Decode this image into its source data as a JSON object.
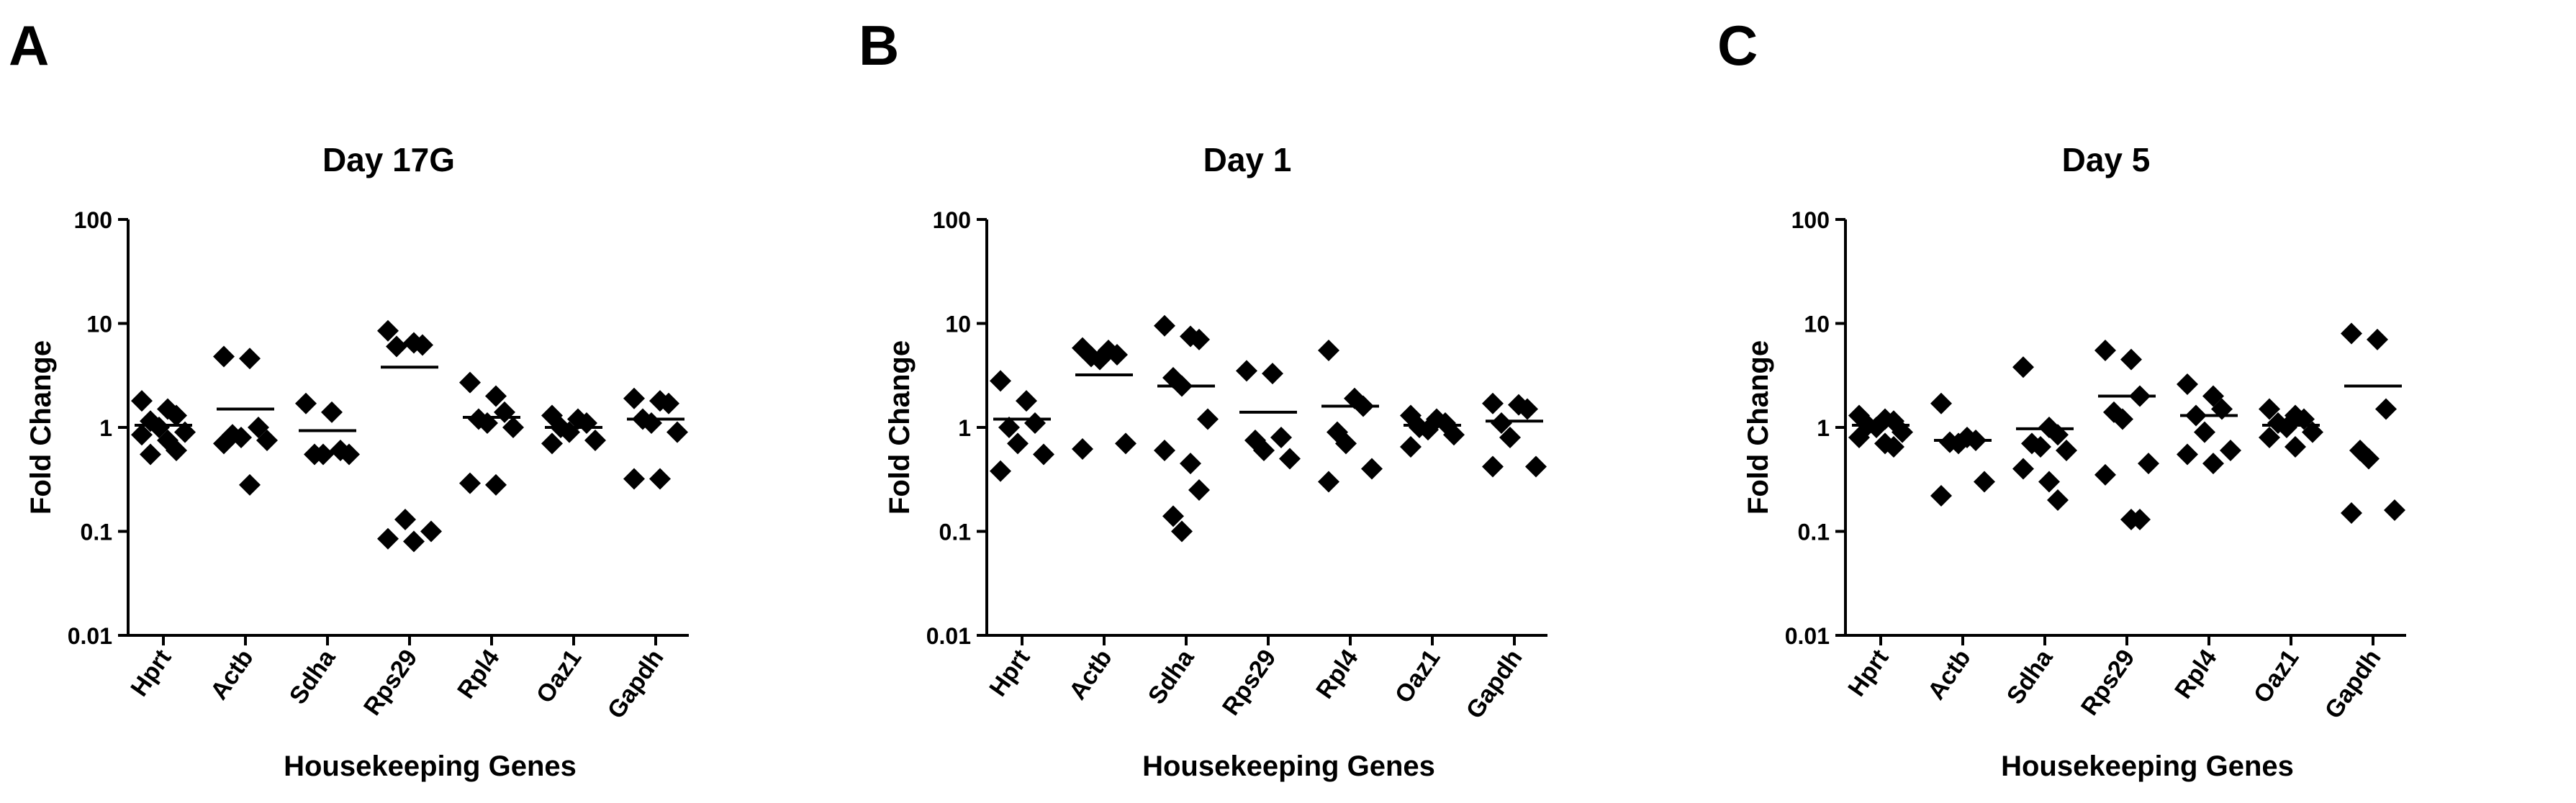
{
  "figure": {
    "panels": [
      {
        "letter": "A"
      },
      {
        "letter": "B"
      },
      {
        "letter": "C"
      }
    ]
  },
  "chart_data": [
    {
      "type": "scatter",
      "panel": "A",
      "title": "Day 17G",
      "xlabel": "Housekeeping Genes",
      "ylabel": "Fold Change",
      "yscale": "log",
      "ylim": [
        0.01,
        100
      ],
      "yticks": [
        "0.01",
        "0.1",
        "1",
        "10",
        "100"
      ],
      "yticks_values": [
        0.01,
        0.1,
        1,
        10,
        100
      ],
      "categories": [
        "Hprt",
        "Actb",
        "Sdha",
        "Rps29",
        "Rpl4",
        "Oaz1",
        "Gapdh"
      ],
      "series": [
        {
          "name": "Hprt",
          "points": [
            1.8,
            1.5,
            1.3,
            1.15,
            1.0,
            0.9,
            0.85,
            0.75,
            0.6,
            0.55
          ],
          "mean": 1.05
        },
        {
          "name": "Actb",
          "points": [
            4.8,
            4.6,
            1.0,
            0.85,
            0.8,
            0.75,
            0.7,
            0.28
          ],
          "mean": 1.5
        },
        {
          "name": "Sdha",
          "points": [
            1.7,
            1.4,
            0.6,
            0.55,
            0.55,
            0.55
          ],
          "mean": 0.93
        },
        {
          "name": "Rps29",
          "points": [
            8.5,
            6.5,
            6.2,
            6.0,
            0.13,
            0.1,
            0.085,
            0.08
          ],
          "mean": 3.8
        },
        {
          "name": "Rpl4",
          "points": [
            2.7,
            2.0,
            1.4,
            1.2,
            1.1,
            1.0,
            0.29,
            0.28
          ],
          "mean": 1.25
        },
        {
          "name": "Oaz1",
          "points": [
            1.3,
            1.2,
            1.1,
            1.0,
            0.9,
            0.75,
            0.7
          ],
          "mean": 1.0
        },
        {
          "name": "Gapdh",
          "points": [
            1.9,
            1.8,
            1.7,
            1.2,
            1.1,
            0.9,
            0.32,
            0.32
          ],
          "mean": 1.2
        }
      ]
    },
    {
      "type": "scatter",
      "panel": "B",
      "title": "Day 1",
      "xlabel": "Housekeeping Genes",
      "ylabel": "Fold Change",
      "yscale": "log",
      "ylim": [
        0.01,
        100
      ],
      "yticks": [
        "0.01",
        "0.1",
        "1",
        "10",
        "100"
      ],
      "yticks_values": [
        0.01,
        0.1,
        1,
        10,
        100
      ],
      "categories": [
        "Hprt",
        "Actb",
        "Sdha",
        "Rps29",
        "Rpl4",
        "Oaz1",
        "Gapdh"
      ],
      "series": [
        {
          "name": "Hprt",
          "points": [
            2.8,
            1.8,
            1.1,
            1.0,
            0.7,
            0.55,
            0.38
          ],
          "mean": 1.2
        },
        {
          "name": "Actb",
          "points": [
            5.8,
            5.5,
            5.0,
            4.8,
            4.5,
            0.7,
            0.62
          ],
          "mean": 3.2
        },
        {
          "name": "Sdha",
          "points": [
            9.5,
            7.5,
            7.0,
            3.0,
            2.5,
            1.2,
            0.6,
            0.45,
            0.25,
            0.14,
            0.1
          ],
          "mean": 2.5
        },
        {
          "name": "Rps29",
          "points": [
            3.5,
            3.3,
            0.8,
            0.75,
            0.6,
            0.5
          ],
          "mean": 1.4
        },
        {
          "name": "Rpl4",
          "points": [
            5.5,
            1.9,
            1.6,
            0.9,
            0.7,
            0.4,
            0.3
          ],
          "mean": 1.6
        },
        {
          "name": "Oaz1",
          "points": [
            1.3,
            1.2,
            1.1,
            1.0,
            0.95,
            0.85,
            0.65
          ],
          "mean": 1.05
        },
        {
          "name": "Gapdh",
          "points": [
            1.7,
            1.65,
            1.5,
            1.1,
            0.8,
            0.42,
            0.42
          ],
          "mean": 1.15
        }
      ]
    },
    {
      "type": "scatter",
      "panel": "C",
      "title": "Day 5",
      "xlabel": "Housekeeping Genes",
      "ylabel": "Fold Change",
      "yscale": "log",
      "ylim": [
        0.01,
        100
      ],
      "yticks": [
        "0.01",
        "0.1",
        "1",
        "10",
        "100"
      ],
      "yticks_values": [
        0.01,
        0.1,
        1,
        10,
        100
      ],
      "categories": [
        "Hprt",
        "Actb",
        "Sdha",
        "Rps29",
        "Rpl4",
        "Oaz1",
        "Gapdh"
      ],
      "series": [
        {
          "name": "Hprt",
          "points": [
            1.3,
            1.2,
            1.15,
            1.05,
            1.0,
            0.9,
            0.8,
            0.7,
            0.65
          ],
          "mean": 1.05
        },
        {
          "name": "Actb",
          "points": [
            1.7,
            0.8,
            0.75,
            0.72,
            0.7,
            0.3,
            0.22
          ],
          "mean": 0.75
        },
        {
          "name": "Sdha",
          "points": [
            3.8,
            1.0,
            0.85,
            0.7,
            0.65,
            0.6,
            0.4,
            0.3,
            0.2
          ],
          "mean": 0.97
        },
        {
          "name": "Rps29",
          "points": [
            5.5,
            4.5,
            2.0,
            1.4,
            1.2,
            0.45,
            0.35,
            0.13,
            0.13
          ],
          "mean": 2.0
        },
        {
          "name": "Rpl4",
          "points": [
            2.6,
            2.0,
            1.5,
            1.3,
            0.9,
            0.6,
            0.55,
            0.45
          ],
          "mean": 1.3
        },
        {
          "name": "Oaz1",
          "points": [
            1.5,
            1.3,
            1.2,
            1.1,
            1.0,
            0.9,
            0.8,
            0.65
          ],
          "mean": 1.05
        },
        {
          "name": "Gapdh",
          "points": [
            8.0,
            7.0,
            1.5,
            0.6,
            0.5,
            0.16,
            0.15
          ],
          "mean": 2.5
        }
      ]
    }
  ]
}
